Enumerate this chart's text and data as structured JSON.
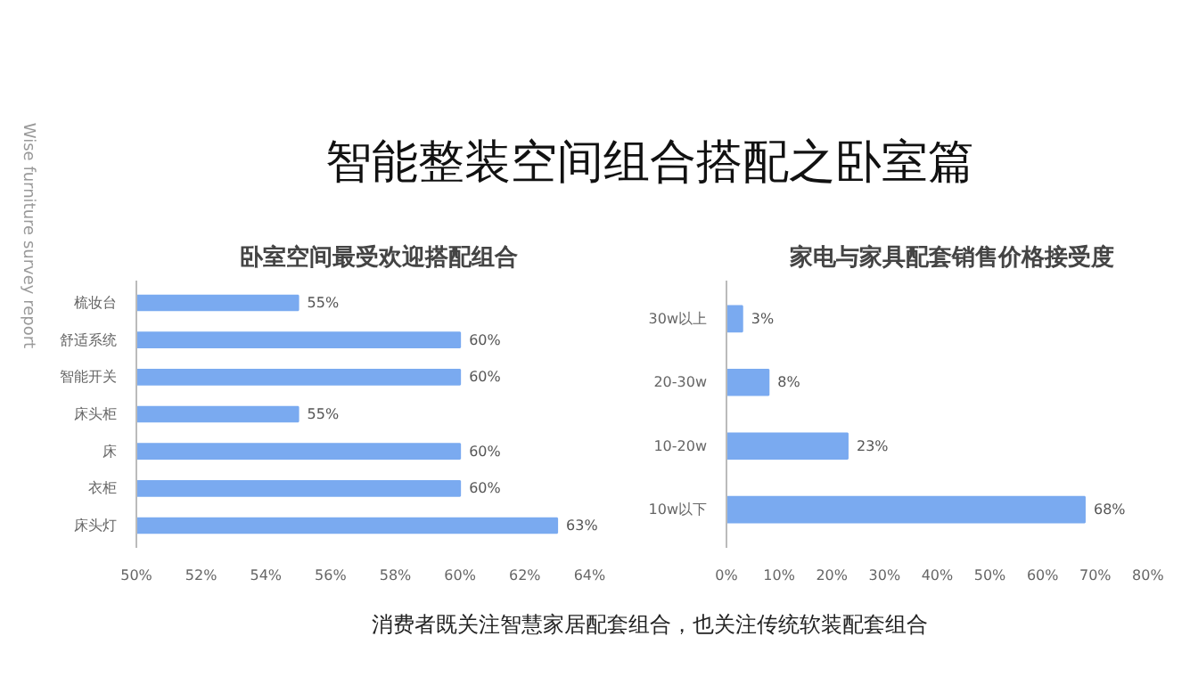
{
  "chart_data": [
    {
      "type": "other",
      "title": "智能整装空间组合搭配之卧室篇",
      "annotations": [
        "Wise furniture survey report",
        "消费者既关注智慧家居配套组合，也关注传统软装配套组合"
      ]
    },
    {
      "type": "bar",
      "orientation": "horizontal",
      "title": "卧室空间最受欢迎搭配组合",
      "categories": [
        "梳妆台",
        "舒适系统",
        "智能开关",
        "床头柜",
        "床",
        "衣柜",
        "床头灯"
      ],
      "values": [
        55,
        60,
        60,
        55,
        60,
        60,
        63
      ],
      "value_labels": [
        "55%",
        "60%",
        "60%",
        "55%",
        "60%",
        "60%",
        "63%"
      ],
      "color": "#7aaaf0",
      "xlim": [
        50,
        64
      ],
      "xticks": [
        {
          "value": 50,
          "label": "50%"
        },
        {
          "value": 52,
          "label": "52%"
        },
        {
          "value": 54,
          "label": "54%"
        },
        {
          "value": 56,
          "label": "56%"
        },
        {
          "value": 58,
          "label": "58%"
        },
        {
          "value": 60,
          "label": "60%"
        },
        {
          "value": 62,
          "label": "62%"
        },
        {
          "value": 64,
          "label": "64%"
        }
      ],
      "grid": false
    },
    {
      "type": "bar",
      "orientation": "horizontal",
      "title": "家电与家具配套销售价格接受度",
      "categories": [
        "30w以上",
        "20-30w",
        "10-20w",
        "10w以下"
      ],
      "values": [
        3,
        8,
        23,
        68
      ],
      "value_labels": [
        "3%",
        "8%",
        "23%",
        "68%"
      ],
      "color": "#7aaaf0",
      "xlim": [
        0,
        80
      ],
      "xticks": [
        {
          "value": 0,
          "label": "0%"
        },
        {
          "value": 10,
          "label": "10%"
        },
        {
          "value": 20,
          "label": "20%"
        },
        {
          "value": 30,
          "label": "30%"
        },
        {
          "value": 40,
          "label": "40%"
        },
        {
          "value": 50,
          "label": "50%"
        },
        {
          "value": 60,
          "label": "60%"
        },
        {
          "value": 70,
          "label": "70%"
        },
        {
          "value": 80,
          "label": "80%"
        }
      ],
      "grid": false
    }
  ]
}
